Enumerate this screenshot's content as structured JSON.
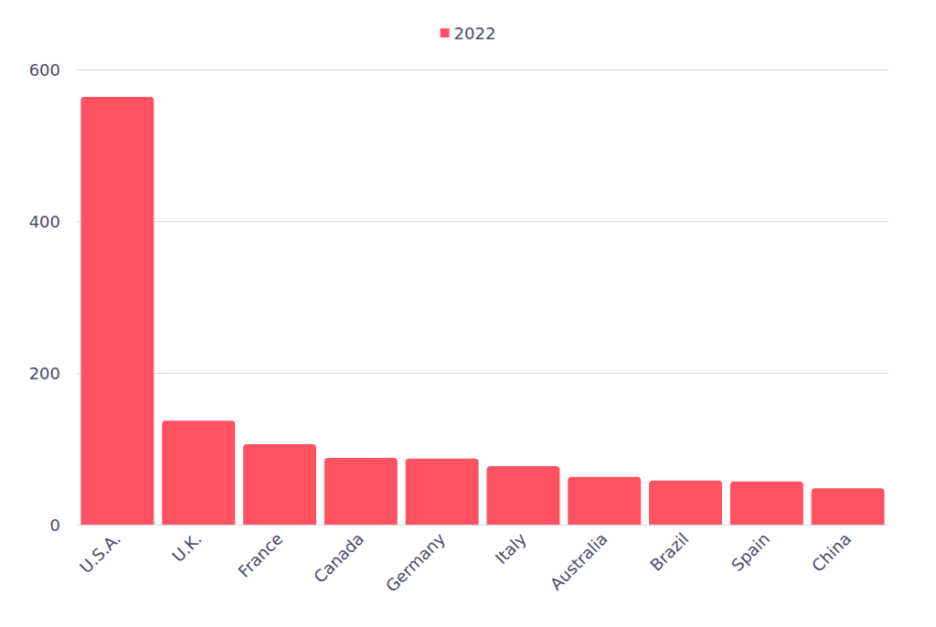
{
  "chart_data": {
    "type": "bar",
    "categories": [
      "U.S.A.",
      "U.K.",
      "France",
      "Canada",
      "Germany",
      "Italy",
      "Australia",
      "Brazil",
      "Spain",
      "China"
    ],
    "series": [
      {
        "name": "2022",
        "color": "#fe5262",
        "values": [
          564,
          137,
          106,
          88,
          87,
          77,
          63,
          58,
          57,
          48
        ]
      }
    ],
    "ylim": [
      0,
      600
    ],
    "yticks": [
      0,
      200,
      400,
      600
    ],
    "grid": true,
    "legend": "top"
  }
}
